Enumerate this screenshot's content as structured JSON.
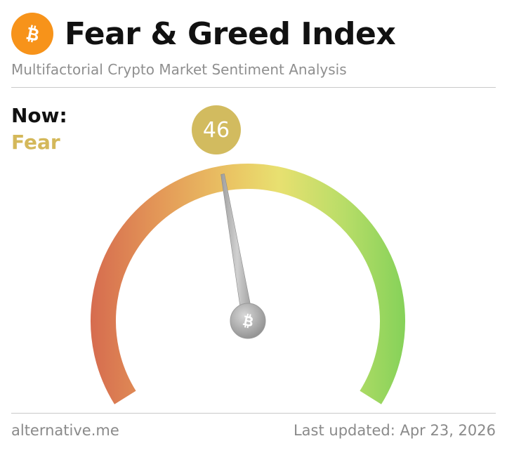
{
  "header": {
    "logo_icon": "bitcoin-icon",
    "title": "Fear & Greed Index",
    "subtitle": "Multifactorial Crypto Market Sentiment Analysis"
  },
  "now": {
    "label": "Now:",
    "classification": "Fear",
    "value": "46"
  },
  "gauge": {
    "value": 46,
    "min": 0,
    "max": 100,
    "center_icon": "bitcoin-icon"
  },
  "footer": {
    "source": "alternative.me",
    "updated": "Last updated: Apr 23, 2026"
  },
  "colors": {
    "brand_orange": "#f7931a",
    "fear_text": "#d4b85a",
    "bubble": "#d2bb5f",
    "gauge_red": "#d66c4f",
    "gauge_yellow": "#e8e070",
    "gauge_green": "#7ed057",
    "needle": "#a9a9a9"
  }
}
